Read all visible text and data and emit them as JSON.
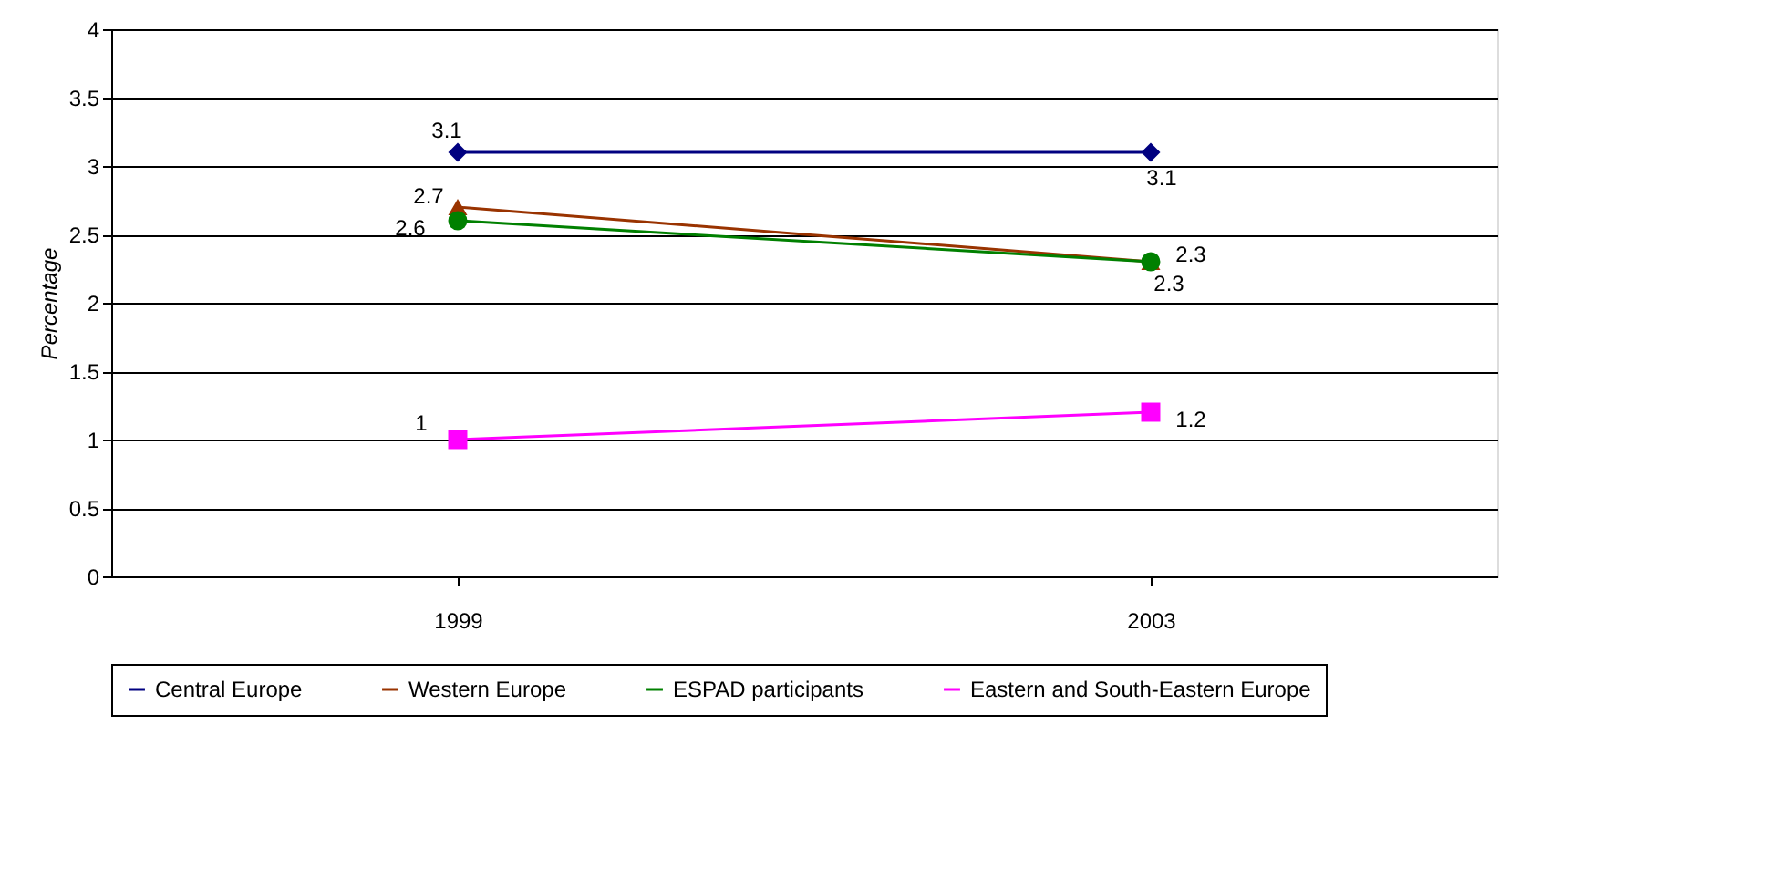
{
  "chart_data": {
    "type": "line",
    "ylabel": "Percentage",
    "categories": [
      "1999",
      "2003"
    ],
    "ylim": [
      0,
      4
    ],
    "yticks": [
      0,
      0.5,
      1,
      1.5,
      2,
      2.5,
      3,
      3.5,
      4
    ],
    "grid": "y",
    "legend": "bottom",
    "data_labels": true,
    "line_style": "solid",
    "series": [
      {
        "name": "Central Europe",
        "color": "#000080",
        "marker": "diamond",
        "values": [
          3.1,
          3.1
        ]
      },
      {
        "name": "Western Europe",
        "color": "#993300",
        "marker": "triangle",
        "values": [
          2.7,
          2.3
        ]
      },
      {
        "name": "ESPAD participants",
        "color": "#008000",
        "marker": "circle",
        "values": [
          2.6,
          2.3
        ]
      },
      {
        "name": "Eastern and South-Eastern Europe",
        "color": "#ff00ff",
        "marker": "square",
        "values": [
          1,
          1.2
        ]
      }
    ]
  }
}
